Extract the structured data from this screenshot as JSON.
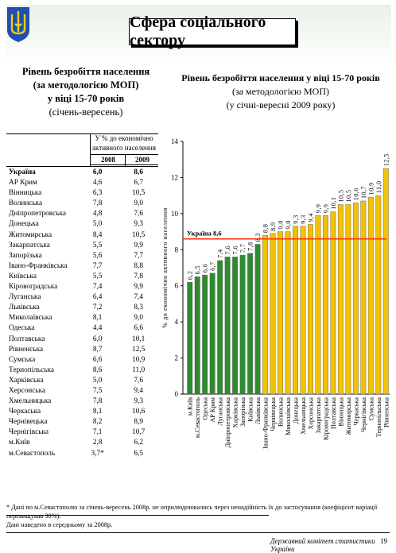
{
  "header": {
    "title": "Сфера соціального сектору"
  },
  "left": {
    "title_line1": "Рівень безробіття населення",
    "title_line2": "(за методологією МОП)",
    "title_line3": "у віці 15-70 років",
    "title_line4": "(січень-вересень)"
  },
  "table": {
    "header": "У % до економічно активного населення",
    "years": [
      "2008",
      "2009"
    ],
    "rows": [
      {
        "name": "Україна",
        "v2008": "6,0",
        "v2009": "8,6"
      },
      {
        "name": "АР Крим",
        "v2008": "4,6",
        "v2009": "6,7"
      },
      {
        "name": "Вінницька",
        "v2008": "6,3",
        "v2009": "10,5"
      },
      {
        "name": "Волинська",
        "v2008": "7,8",
        "v2009": "9,0"
      },
      {
        "name": "Дніпропетровська",
        "v2008": "4,8",
        "v2009": "7,6"
      },
      {
        "name": "Донецька",
        "v2008": "5,0",
        "v2009": "9,3"
      },
      {
        "name": "Житомирська",
        "v2008": "8,4",
        "v2009": "10,5"
      },
      {
        "name": "Закарпатська",
        "v2008": "5,5",
        "v2009": "9,9"
      },
      {
        "name": "Запорізька",
        "v2008": "5,6",
        "v2009": "7,7"
      },
      {
        "name": "Івано-Франківська",
        "v2008": "7,7",
        "v2009": "8,8"
      },
      {
        "name": "Київська",
        "v2008": "5,5",
        "v2009": "7,8"
      },
      {
        "name": "Кіровоградська",
        "v2008": "7,4",
        "v2009": "9,9"
      },
      {
        "name": "Луганська",
        "v2008": "6,4",
        "v2009": "7,4"
      },
      {
        "name": "Львівська",
        "v2008": "7,2",
        "v2009": "8,3"
      },
      {
        "name": "Миколаївська",
        "v2008": "8,1",
        "v2009": "9,0"
      },
      {
        "name": "Одеська",
        "v2008": "4,4",
        "v2009": "6,6"
      },
      {
        "name": "Полтавська",
        "v2008": "6,0",
        "v2009": "10,1"
      },
      {
        "name": "Рівненська",
        "v2008": "8,7",
        "v2009": "12,5"
      },
      {
        "name": "Сумська",
        "v2008": "6,6",
        "v2009": "10,9"
      },
      {
        "name": "Тернопільська",
        "v2008": "8,6",
        "v2009": "11,0"
      },
      {
        "name": "Харківська",
        "v2008": "5,0",
        "v2009": "7,6"
      },
      {
        "name": "Херсонська",
        "v2008": "7,5",
        "v2009": "9,4"
      },
      {
        "name": "Хмельницька",
        "v2008": "7,8",
        "v2009": "9,3"
      },
      {
        "name": "Черкаська",
        "v2008": "8,1",
        "v2009": "10,6"
      },
      {
        "name": "Чернівецька",
        "v2008": "8,2",
        "v2009": "8,9"
      },
      {
        "name": "Чернігівська",
        "v2008": "7,1",
        "v2009": "10,7"
      },
      {
        "name": "м.Київ",
        "v2008": "2,8",
        "v2009": "6,2"
      },
      {
        "name": "м.Севастополь",
        "v2008": "3,7*",
        "v2009": "6,5"
      }
    ]
  },
  "chart_title": {
    "line1": "Рівень безробіття населення у віці 15-70 років",
    "line2": "(за методологією МОП)",
    "line3": "(у січні-вересні 2009 року)"
  },
  "chart_data": {
    "type": "bar",
    "ylabel": "% до економічно активного населення",
    "ylim": [
      0,
      14
    ],
    "yticks": [
      0,
      2,
      4,
      6,
      8,
      10,
      12,
      14
    ],
    "categories": [
      "м.Київ",
      "м.Севастополь",
      "Одеська",
      "АР Крим",
      "Луганська",
      "Дніпропетровська",
      "Харківська",
      "Запорізька",
      "Київська",
      "Львівська",
      "Івано-Франківська",
      "Чернівецька",
      "Волинська",
      "Миколаївська",
      "Донецька",
      "Хмельницька",
      "Херсонська",
      "Закарпатська",
      "Кіровоградська",
      "Полтавська",
      "Вінницька",
      "Житомирська",
      "Черкаська",
      "Чернігівська",
      "Сумська",
      "Тернопільська",
      "Рівненська"
    ],
    "values": [
      6.2,
      6.5,
      6.6,
      6.7,
      7.4,
      7.6,
      7.6,
      7.7,
      7.8,
      8.3,
      8.8,
      8.9,
      9.0,
      9.0,
      9.3,
      9.3,
      9.4,
      9.9,
      9.9,
      10.1,
      10.5,
      10.5,
      10.6,
      10.7,
      10.9,
      11.0,
      12.5
    ],
    "value_labels": [
      "6,2",
      "6,5",
      "6,6",
      "6,7",
      "7,4",
      "7,6",
      "7,6",
      "7,7",
      "7,8",
      "8,3",
      "8,8",
      "8,9",
      "9,0",
      "9,0",
      "9,3",
      "9,3",
      "9,4",
      "9,9",
      "9,9",
      "10,1",
      "10,5",
      "10,5",
      "10,6",
      "10,7",
      "10,9",
      "11,0",
      "12,5"
    ],
    "reference_line": {
      "value": 8.6,
      "label": "Україна 8,6",
      "color": "#ff3300"
    },
    "colors": {
      "below": "#2e8b2e",
      "above": "#f2c200"
    },
    "grid": false
  },
  "footnote": {
    "line1": "* Дані по м.Севастополю за січень-вересень 2008р. не оприлюднювались через ненадійність їх до застосування (коефіцієнт варіації перевищував 30%).",
    "line2": "Дані наведено в середньому за 2008р."
  },
  "footer": {
    "org": "Державний комітет статистики України",
    "page": "19"
  }
}
